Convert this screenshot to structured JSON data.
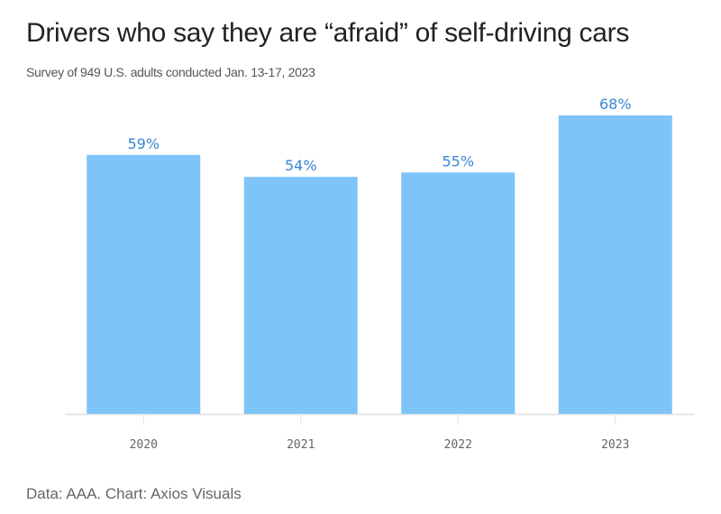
{
  "chart_data": {
    "type": "bar",
    "title": "Drivers who say they are “afraid” of self-driving cars",
    "subtitle": "Survey of 949 U.S. adults conducted Jan. 13-17, 2023",
    "categories": [
      "2020",
      "2021",
      "2022",
      "2023"
    ],
    "values": [
      59,
      54,
      55,
      68
    ],
    "data_labels": [
      "59%",
      "54%",
      "55%",
      "68%"
    ],
    "xlabel": "",
    "ylabel": "",
    "ylim": [
      0,
      68
    ],
    "grid": false,
    "bar_color": "#7ec4f8",
    "label_color": "#3a86d4",
    "footer": "Data: AAA. Chart: Axios Visuals"
  }
}
